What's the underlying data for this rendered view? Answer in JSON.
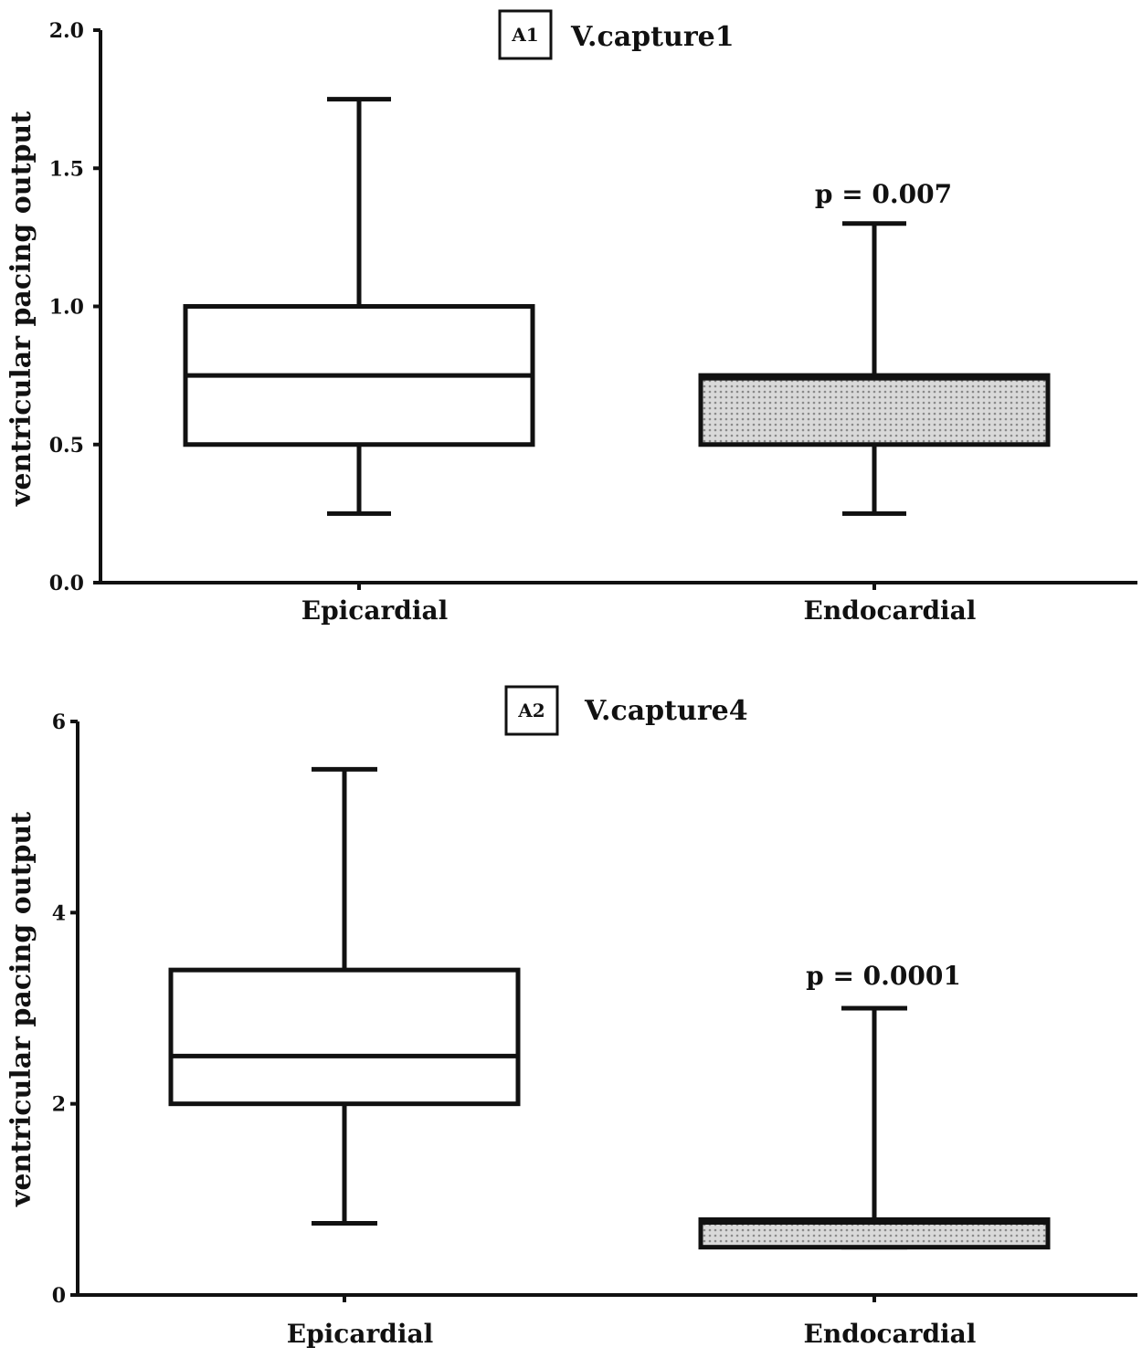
{
  "chart_data": [
    {
      "type": "box",
      "panel": "A1",
      "title": "V.capture1",
      "ylabel": "ventricular pacing output",
      "xlabel": "",
      "ylim": [
        0,
        2.0
      ],
      "yticks": [
        "0.0",
        "0.5",
        "1.0",
        "1.5",
        "2.0"
      ],
      "ytick_values": [
        0,
        0.5,
        1.0,
        1.5,
        2.0
      ],
      "categories": [
        "Epicardial",
        "Endocardial"
      ],
      "boxes": [
        {
          "name": "Epicardial",
          "min": 0.25,
          "q1": 0.5,
          "median": 0.75,
          "q3": 1.0,
          "max": 1.75,
          "fill": "#ffffff"
        },
        {
          "name": "Endocardial",
          "min": 0.25,
          "q1": 0.5,
          "median": 0.75,
          "q3": 0.75,
          "max": 1.3,
          "fill": "#bdbdbd"
        }
      ],
      "annotation": {
        "text": "p = 0.007",
        "category": "Endocardial"
      }
    },
    {
      "type": "box",
      "panel": "A2",
      "title": "V.capture4",
      "ylabel": "ventricular pacing output",
      "xlabel": "",
      "ylim": [
        0,
        6
      ],
      "yticks": [
        "0",
        "2",
        "4",
        "6"
      ],
      "ytick_values": [
        0,
        2,
        4,
        6
      ],
      "categories": [
        "Epicardial",
        "Endocardial"
      ],
      "boxes": [
        {
          "name": "Epicardial",
          "min": 0.75,
          "q1": 2.0,
          "median": 2.5,
          "q3": 3.4,
          "max": 5.5,
          "fill": "#ffffff"
        },
        {
          "name": "Endocardial",
          "min": 0.5,
          "q1": 0.5,
          "median": 0.75,
          "q3": 0.75,
          "max": 3.0,
          "fill": "#c8c8c8"
        }
      ],
      "annotation": {
        "text": "p = 0.0001",
        "category": "Endocardial"
      }
    }
  ]
}
